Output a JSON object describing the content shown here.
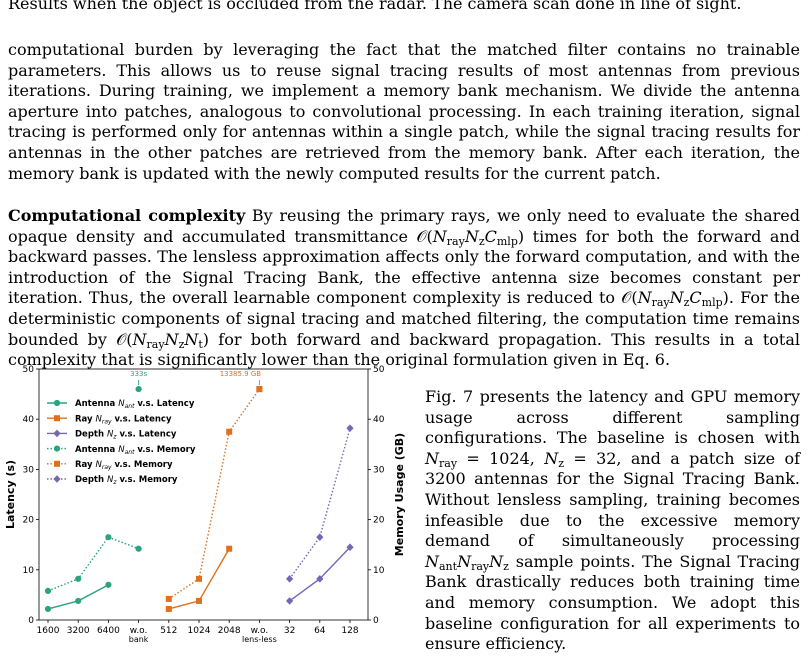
{
  "caption_line": "Results when the object is occluded from the radar. The camera scan done in line of sight.",
  "para_membank": "computational burden by leveraging the fact that the matched filter contains no trainable parameters. This allows us to reuse signal tracing results of most antennas from previous iterations. During training, we implement a memory bank mechanism. We divide the antenna aperture into patches, analogous to convolutional processing. In each training iteration, signal tracing is performed only for antennas within a single patch, while the signal tracing results for antennas in the other patches are retrieved from the memory bank. After each iteration, the memory bank is updated with the newly computed results for the current patch.",
  "complexity": {
    "heading": "Computational complexity",
    "s1": "By reusing the primary rays, we only need to evaluate the shared opaque density and accumulated transmittance",
    "s1_end": "times for both the forward and backward passes. The lensless approximation affects only the forward computation, and with the introduction of the Signal Tracing Bank, the effective antenna size becomes constant per iteration. Thus, the overall learnable component complexity is reduced to",
    "s2_end": ". For the deterministic components of signal tracing and matched filtering, the computation time remains bounded by",
    "s3_end": "for both forward and backward propagation. This results in a total complexity that is significantly lower than the original formulation given in Eq. 6."
  },
  "fig7": {
    "a": "Fig. 7 presents the latency and GPU memory usage across different sampling configurations. The baseline is chosen with",
    "b": ", and a patch size of 3200 antennas for the Signal Tracing Bank. Without lensless sampling, training becomes infeasible due to the excessive memory demand of simultaneously processing",
    "c": "sample points. The Signal Tracing Bank drastically reduces both training time and memory consumption. We adopt this baseline configuration for all experiments to ensure efficiency."
  },
  "math": {
    "O": "𝒪(",
    "close": ")",
    "N": "N",
    "C": "C",
    "sub_ray": "ray",
    "sub_z": "z",
    "sub_mlp": "mlp",
    "sub_t": "t",
    "sub_ant": "ant",
    "eq_ray": " = 1024,",
    "eq_z": " = 32"
  },
  "chart_data": {
    "type": "line",
    "ylabel_left": "Latency (s)",
    "ylabel_right": "Memory Usage (GB)",
    "ylim": [
      0,
      50
    ],
    "yticks": [
      0,
      10,
      20,
      30,
      40,
      50
    ],
    "y2ticks": [
      0,
      10,
      20,
      30,
      40,
      50
    ],
    "x_ticks": [
      {
        "label": "1600",
        "x": 0
      },
      {
        "label": "3200",
        "x": 1
      },
      {
        "label": "6400",
        "x": 2
      },
      {
        "label": "w.o.",
        "sub": "bank",
        "x": 3
      },
      {
        "label": "512",
        "x": 4
      },
      {
        "label": "1024",
        "x": 5
      },
      {
        "label": "2048",
        "x": 6
      },
      {
        "label": "w.o.",
        "sub": "lens-less",
        "x": 7
      },
      {
        "label": "32",
        "x": 8
      },
      {
        "label": "64",
        "x": 9
      },
      {
        "label": "128",
        "x": 10
      }
    ],
    "series": [
      {
        "name": "Antenna N_ant v.s. Latency",
        "kind": "latency",
        "color": "#2ca37f",
        "marker": "circle",
        "x": [
          0,
          1,
          2
        ],
        "y": [
          2.2,
          3.8,
          7.0
        ]
      },
      {
        "name": "Ray N_ray v.s. Latency",
        "kind": "latency",
        "color": "#e0701c",
        "marker": "square",
        "x": [
          4,
          5,
          6
        ],
        "y": [
          2.2,
          3.8,
          14.2
        ]
      },
      {
        "name": "Depth N_z v.s. Latency",
        "kind": "latency",
        "color": "#7566b8",
        "marker": "diamond",
        "x": [
          8,
          9,
          10
        ],
        "y": [
          3.8,
          8.2,
          14.5
        ]
      },
      {
        "name": "Antenna N_ant v.s. Memory",
        "kind": "memory",
        "color": "#2ca37f",
        "marker": "circle",
        "x": [
          0,
          1,
          2,
          3
        ],
        "y": [
          5.8,
          8.2,
          16.5,
          14.2
        ]
      },
      {
        "name": "Ray N_ray v.s. Memory",
        "kind": "memory",
        "color": "#e0701c",
        "marker": "square",
        "x": [
          4,
          5,
          6,
          7
        ],
        "y": [
          4.2,
          8.2,
          37.5,
          46.0
        ]
      },
      {
        "name": "Depth N_z v.s. Memory",
        "kind": "memory",
        "color": "#7566b8",
        "marker": "diamond",
        "x": [
          8,
          9,
          10
        ],
        "y": [
          8.2,
          16.5,
          38.2
        ]
      }
    ],
    "annotations": [
      {
        "text": "333s",
        "x": 3,
        "y": 46.0,
        "color": "#2ca37f",
        "marker": "circle"
      },
      {
        "text": "13385.9 GB",
        "x": 7,
        "y": 46.0,
        "color": "#e0701c",
        "marker": "square"
      }
    ],
    "legend": [
      {
        "pre": "Antenna ",
        "sym": "N",
        "sub": "ant",
        "post": " v.s. Latency",
        "color": "#2ca37f",
        "marker": "circle",
        "dashed": false
      },
      {
        "pre": "Ray ",
        "sym": "N",
        "sub": "ray",
        "post": " v.s. Latency",
        "color": "#e0701c",
        "marker": "square",
        "dashed": false
      },
      {
        "pre": "Depth ",
        "sym": "N",
        "sub": "z",
        "post": " v.s. Latency",
        "color": "#7566b8",
        "marker": "diamond",
        "dashed": false
      },
      {
        "pre": "Antenna ",
        "sym": "N",
        "sub": "ant",
        "post": " v.s. Memory",
        "color": "#2ca37f",
        "marker": "circle",
        "dashed": true
      },
      {
        "pre": "Ray ",
        "sym": "N",
        "sub": "ray",
        "post": " v.s. Memory",
        "color": "#e0701c",
        "marker": "square",
        "dashed": true
      },
      {
        "pre": "Depth ",
        "sym": "N",
        "sub": "z",
        "post": " v.s. Memory",
        "color": "#7566b8",
        "marker": "diamond",
        "dashed": true
      }
    ],
    "legend_position": "top-left",
    "grid": false
  }
}
